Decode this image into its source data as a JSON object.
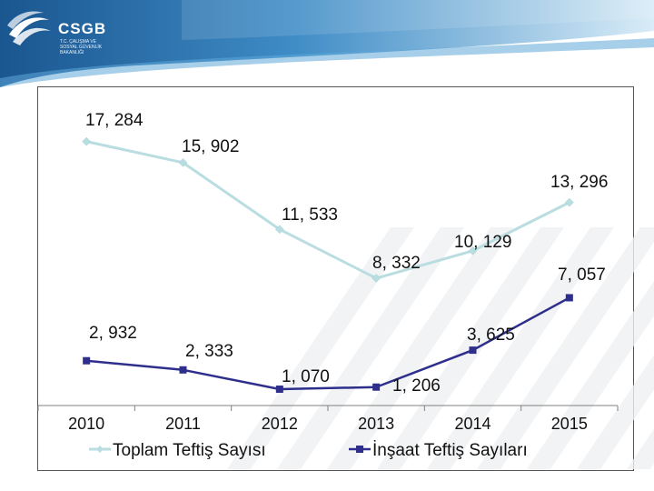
{
  "logo": {
    "name": "CSGB",
    "subtitle_lines": [
      "T.C. ÇALIŞMA VE",
      "SOSYAL GÜVENLİK",
      "BAKANLIĞI"
    ]
  },
  "colors": {
    "header_blue": "#1b5a92",
    "header_light": "#8fc2e2",
    "series_toplam": "#b9dde0",
    "series_insaat": "#2e2e8c",
    "axis": "#808080"
  },
  "chart_data": {
    "type": "line",
    "x": [
      "2010",
      "2011",
      "2012",
      "2013",
      "2014",
      "2015"
    ],
    "series": [
      {
        "name": "Toplam Teftiş Sayısı",
        "values": [
          17284,
          15902,
          11533,
          8332,
          10129,
          13296
        ],
        "labels": [
          "17, 284",
          "15, 902",
          "11, 533",
          "8, 332",
          "10, 129",
          "13, 296"
        ],
        "color": "#b9dde0",
        "marker": "diamond"
      },
      {
        "name": "İnşaat Teftiş Sayıları",
        "values": [
          2932,
          2333,
          1070,
          1206,
          3625,
          7057
        ],
        "labels": [
          "2, 932",
          "2, 333",
          "1, 070",
          "1, 206",
          "3, 625",
          "7, 057"
        ],
        "color": "#2e2e8c",
        "marker": "square"
      }
    ],
    "ylim": [
      0,
      20000
    ],
    "grid": false,
    "legend": "bottom",
    "title": "",
    "xlabel": "",
    "ylabel": ""
  }
}
